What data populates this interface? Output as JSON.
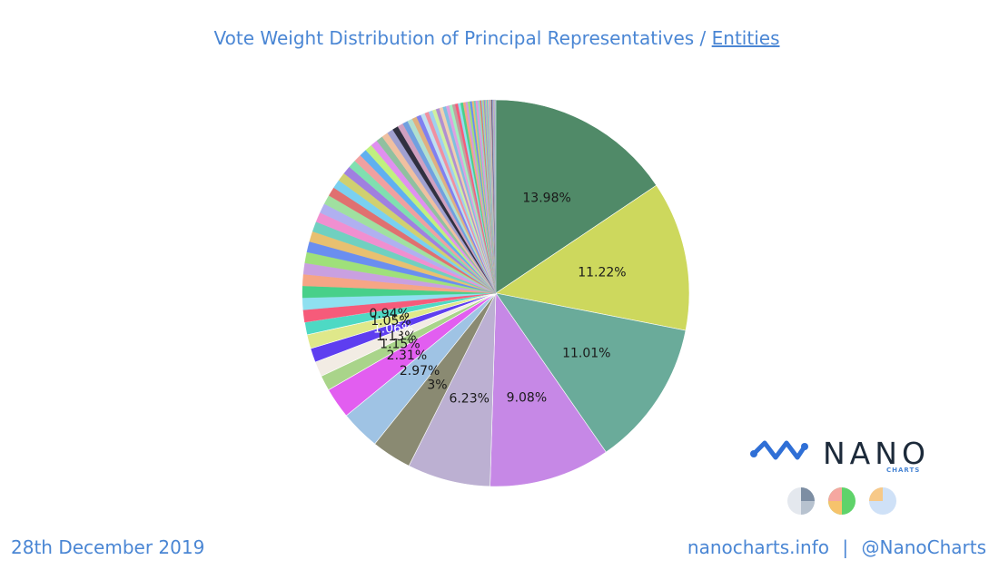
{
  "title": {
    "text": "Vote Weight Distribution of Principal Representatives / ",
    "link": "Entities"
  },
  "date": "28th December 2019",
  "footer": {
    "site": "nanocharts.info",
    "separator": "|",
    "handle": "@NanoCharts"
  },
  "logo": {
    "word": "NANO",
    "sub": "CHARTS",
    "accent": "#2f6fd6"
  },
  "mini_icons": [
    "pie-icon-gray",
    "pie-icon-green",
    "pie-icon-blue"
  ],
  "chart_data": {
    "type": "pie",
    "start_angle": "12 o'clock",
    "direction": "clockwise",
    "labeled_slices": [
      {
        "value": 13.98,
        "label": "13.98%",
        "color": "#508a68"
      },
      {
        "value": 11.22,
        "label": "11.22%",
        "color": "#cdd85d"
      },
      {
        "value": 11.01,
        "label": "11.01%",
        "color": "#6aab9a"
      },
      {
        "value": 9.08,
        "label": "9.08%",
        "color": "#c688e6"
      },
      {
        "value": 6.23,
        "label": "6.23%",
        "color": "#bcb0d2"
      },
      {
        "value": 3,
        "label": "3%",
        "color": "#8a8a72"
      },
      {
        "value": 2.97,
        "label": "2.97%",
        "color": "#9fc3e4"
      },
      {
        "value": 2.31,
        "label": "2.31%",
        "color": "#e25ef0"
      },
      {
        "value": 1.15,
        "label": "1.15%",
        "color": "#a9d48a"
      },
      {
        "value": 1.13,
        "label": "1.13%",
        "color": "#f2ece4"
      },
      {
        "value": 1.06,
        "label": "1.06%",
        "color": "#5e3ef0"
      },
      {
        "value": 1.05,
        "label": "1.05%",
        "color": "#dfe88a"
      },
      {
        "value": 0.94,
        "label": "0.94%",
        "color": "#4ed9c4"
      }
    ],
    "small_slice_values": [
      0.92,
      0.9,
      0.88,
      0.86,
      0.84,
      0.82,
      0.8,
      0.78,
      0.76,
      0.74,
      0.72,
      0.7,
      0.68,
      0.66,
      0.64,
      0.62,
      0.6,
      0.58,
      0.56,
      0.54,
      0.52,
      0.5,
      0.48,
      0.46,
      0.44,
      0.42,
      0.4,
      0.38,
      0.36,
      0.34,
      0.32,
      0.3,
      0.29,
      0.28,
      0.27,
      0.26,
      0.25,
      0.24,
      0.23,
      0.22,
      0.21,
      0.2,
      0.19,
      0.18,
      0.17,
      0.16,
      0.15,
      0.14,
      0.13,
      0.12,
      0.11,
      0.1,
      0.1,
      0.09,
      0.09,
      0.08,
      0.08,
      0.07,
      0.07,
      0.06,
      0.06,
      0.05,
      0.05,
      0.05,
      0.04,
      0.04,
      0.04,
      0.03,
      0.03,
      0.03,
      0.02,
      0.02,
      0.02,
      0.02,
      0.01,
      0.01,
      0.01
    ],
    "small_slice_colors": [
      "#f65b7a",
      "#8fe0f0",
      "#48d08a",
      "#f6a585",
      "#c9a0e0",
      "#9fe07a",
      "#6a8ef0",
      "#e8c070",
      "#70d0c0",
      "#f08fd0",
      "#b0b0f0",
      "#a0e0a0",
      "#e07070",
      "#7ad0f0",
      "#d0d070",
      "#a080e0",
      "#80e0b0",
      "#f0a0a0",
      "#60b0f0",
      "#c0f080",
      "#e090f0",
      "#90c0a0",
      "#f0c0a0",
      "#a0a0d0",
      "#303040",
      "#d0a0c0",
      "#70a0e0",
      "#b0e0d0",
      "#e0b080",
      "#8080f0",
      "#c0e0f0",
      "#f090a0",
      "#a0d0f0",
      "#d0f0a0",
      "#b090d0",
      "#f0d0b0",
      "#80c0e0",
      "#e0a0e0",
      "#a0f0c0",
      "#c0a0a0"
    ]
  }
}
